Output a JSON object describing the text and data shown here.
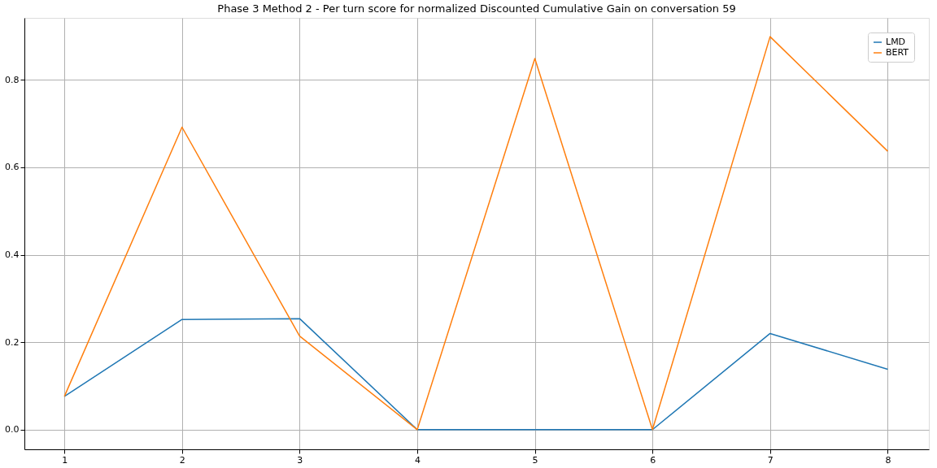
{
  "chart_data": {
    "type": "line",
    "title": "Phase 3 Method 2 - Per turn score for normalized Discounted Cumulative Gain on conversation 59",
    "x": [
      1,
      2,
      3,
      4,
      5,
      6,
      7,
      8
    ],
    "series": [
      {
        "name": "LMD",
        "color": "#1f77b4",
        "values": [
          0.076,
          0.252,
          0.254,
          0,
          0,
          0,
          0.22,
          0.138
        ]
      },
      {
        "name": "BERT",
        "color": "#ff7f0e",
        "values": [
          0.076,
          0.692,
          0.214,
          0,
          0.849,
          0,
          0.899,
          0.637
        ]
      }
    ],
    "xlim": [
      0.66,
      8.35
    ],
    "xticks": [
      1,
      2,
      3,
      4,
      5,
      6,
      7,
      8
    ],
    "ylim": [
      -0.045,
      0.942
    ],
    "yticks": [
      {
        "value": 0,
        "label": "0.0"
      },
      0.2,
      0.4,
      0.6,
      0.8
    ],
    "grid": true,
    "legend": "top right",
    "marker": "none",
    "line_style": "solid"
  }
}
